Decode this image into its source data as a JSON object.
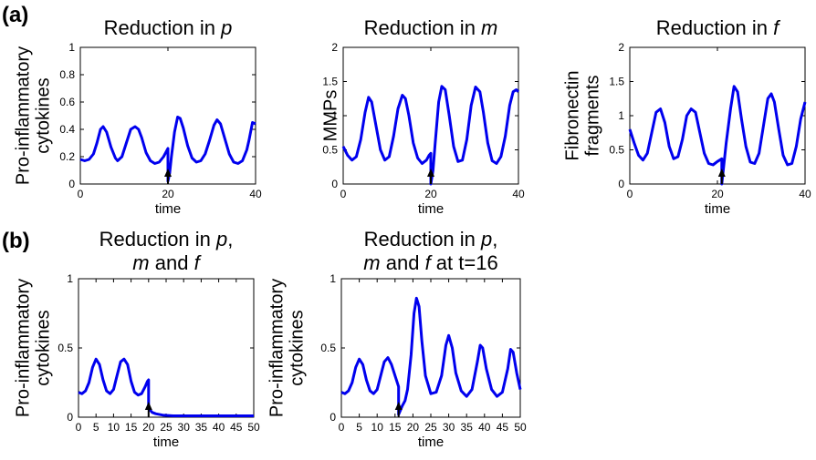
{
  "panel_labels": {
    "a": "(a)",
    "b": "(b)"
  },
  "chart_data": [
    {
      "id": "a1",
      "type": "line",
      "title": "Reduction in ",
      "title_italic": "p",
      "title_rest": "",
      "title2": "",
      "ylabel": [
        "Pro-inflammatory",
        "cytokines"
      ],
      "xlabel": "time",
      "xlim": [
        0,
        40
      ],
      "ylim": [
        0,
        1
      ],
      "xticks": [
        0,
        20,
        40
      ],
      "yticks": [
        0,
        0.2,
        0.4,
        0.6,
        0.8,
        1
      ],
      "ytick_labels": [
        "0",
        "0.2",
        "0.4",
        "0.6",
        "0.8",
        "1"
      ],
      "arrow_at": 20,
      "series": [
        {
          "color": "#0000ee",
          "x": [
            0,
            1,
            2,
            3,
            3.8,
            4.6,
            5.2,
            6,
            7,
            8,
            8.5,
            9.5,
            10.5,
            11.5,
            12.5,
            13.3,
            14,
            15,
            16,
            17,
            18,
            19,
            19.5,
            20,
            20,
            20.4,
            20.8,
            21.5,
            22.2,
            22.8,
            23.5,
            24.5,
            25.5,
            26.5,
            27.5,
            28.5,
            29.5,
            30.5,
            31.2,
            32,
            33,
            34,
            35,
            36,
            37,
            38,
            38.5,
            39.3,
            40
          ],
          "y": [
            0.18,
            0.17,
            0.18,
            0.22,
            0.3,
            0.4,
            0.42,
            0.38,
            0.27,
            0.19,
            0.17,
            0.2,
            0.3,
            0.4,
            0.42,
            0.4,
            0.34,
            0.23,
            0.17,
            0.15,
            0.16,
            0.2,
            0.23,
            0.26,
            0.02,
            0.08,
            0.2,
            0.38,
            0.49,
            0.48,
            0.41,
            0.28,
            0.19,
            0.16,
            0.17,
            0.22,
            0.32,
            0.43,
            0.47,
            0.44,
            0.33,
            0.22,
            0.16,
            0.15,
            0.17,
            0.25,
            0.32,
            0.45,
            0.44
          ]
        }
      ]
    },
    {
      "id": "a2",
      "type": "line",
      "title": "Reduction in ",
      "title_italic": "m",
      "title_rest": "",
      "title2": "",
      "ylabel": [
        "MMPs"
      ],
      "xlabel": "time",
      "xlim": [
        0,
        40
      ],
      "ylim": [
        0,
        2
      ],
      "xticks": [
        0,
        20,
        40
      ],
      "yticks": [
        0,
        0.5,
        1,
        1.5,
        2
      ],
      "ytick_labels": [
        "0",
        "0.5",
        "1",
        "1.5",
        "2"
      ],
      "arrow_at": 20,
      "series": [
        {
          "color": "#0000ee",
          "x": [
            0,
            1,
            2,
            3,
            4,
            5,
            5.8,
            6.5,
            7.5,
            8.5,
            9.5,
            10.5,
            11.5,
            12.5,
            13.5,
            14.2,
            15,
            16,
            17,
            18,
            19,
            19.6,
            20,
            20,
            20.5,
            21,
            21.8,
            22.5,
            23.3,
            24.2,
            25.2,
            26.2,
            27.2,
            28.2,
            29.2,
            30.2,
            31.2,
            32,
            33,
            34,
            35,
            36,
            37,
            38,
            38.8,
            39.5,
            40
          ],
          "y": [
            0.55,
            0.42,
            0.35,
            0.4,
            0.65,
            1.05,
            1.27,
            1.2,
            0.85,
            0.5,
            0.35,
            0.4,
            0.7,
            1.1,
            1.3,
            1.25,
            1.0,
            0.6,
            0.38,
            0.3,
            0.35,
            0.42,
            0.45,
            0.0,
            0.2,
            0.6,
            1.2,
            1.43,
            1.38,
            1.0,
            0.55,
            0.33,
            0.35,
            0.65,
            1.15,
            1.42,
            1.35,
            1.05,
            0.6,
            0.34,
            0.3,
            0.4,
            0.7,
            1.15,
            1.35,
            1.38,
            1.35
          ]
        }
      ]
    },
    {
      "id": "a3",
      "type": "line",
      "title": "Reduction in ",
      "title_italic": "f",
      "title_rest": "",
      "title2": "",
      "ylabel": [
        "Fibronectin",
        "fragments"
      ],
      "xlabel": "time",
      "xlim": [
        0,
        40
      ],
      "ylim": [
        0,
        2
      ],
      "xticks": [
        0,
        20,
        40
      ],
      "yticks": [
        0,
        0.5,
        1,
        1.5,
        2
      ],
      "ytick_labels": [
        "0",
        "0.5",
        "1",
        "1.5",
        "2"
      ],
      "arrow_at": 21,
      "series": [
        {
          "color": "#0000ee",
          "x": [
            0,
            1,
            2,
            3,
            4,
            5,
            6,
            7,
            8,
            9,
            10,
            11,
            12,
            13,
            14,
            15,
            16,
            17,
            18,
            19,
            20,
            21,
            21,
            21.5,
            22,
            23,
            23.8,
            24.6,
            25.5,
            26.5,
            27.5,
            28.5,
            29.5,
            30.5,
            31.5,
            32.3,
            33,
            34,
            35,
            36,
            37,
            38,
            39,
            40
          ],
          "y": [
            0.8,
            0.6,
            0.42,
            0.35,
            0.45,
            0.75,
            1.05,
            1.1,
            0.9,
            0.55,
            0.37,
            0.4,
            0.65,
            1.0,
            1.1,
            1.05,
            0.75,
            0.45,
            0.3,
            0.28,
            0.33,
            0.37,
            0.0,
            0.3,
            0.6,
            1.1,
            1.43,
            1.35,
            0.95,
            0.55,
            0.32,
            0.3,
            0.45,
            0.85,
            1.25,
            1.32,
            1.2,
            0.8,
            0.42,
            0.28,
            0.3,
            0.55,
            0.95,
            1.2
          ]
        }
      ]
    },
    {
      "id": "b1",
      "type": "line",
      "title": "Reduction in ",
      "title_italic": "p",
      "title_rest": ",",
      "title2": "and ",
      "title2_italic_pre": "m",
      "title2_italic": "f",
      "title2_rest": "",
      "ylabel": [
        "Pro-inflammatory",
        "cytokines"
      ],
      "xlabel": "time",
      "xlim": [
        0,
        50
      ],
      "ylim": [
        0,
        1
      ],
      "xticks": [
        0,
        5,
        10,
        15,
        20,
        25,
        30,
        35,
        40,
        45,
        50
      ],
      "yticks": [
        0,
        0.5,
        1
      ],
      "ytick_labels": [
        "0",
        "0.5",
        "1"
      ],
      "arrow_at": 20,
      "series": [
        {
          "color": "#0000ee",
          "x": [
            0,
            1,
            2,
            3,
            4,
            5,
            6,
            7,
            8,
            9,
            10,
            11,
            12,
            13,
            14,
            15,
            16,
            17,
            18,
            19,
            19.7,
            20,
            20,
            20.5,
            21,
            22,
            24,
            27,
            30,
            35,
            40,
            45,
            50
          ],
          "y": [
            0.18,
            0.17,
            0.19,
            0.25,
            0.36,
            0.42,
            0.38,
            0.27,
            0.19,
            0.17,
            0.2,
            0.3,
            0.4,
            0.42,
            0.38,
            0.26,
            0.18,
            0.16,
            0.17,
            0.22,
            0.26,
            0.27,
            0.07,
            0.05,
            0.035,
            0.025,
            0.015,
            0.01,
            0.01,
            0.01,
            0.01,
            0.01,
            0.01
          ]
        }
      ]
    },
    {
      "id": "b2",
      "type": "line",
      "title": "Reduction in ",
      "title_italic": "p",
      "title_rest": ",",
      "title2": "and ",
      "title2_italic_pre": "m",
      "title2_italic": "f",
      "title2_rest": " at t=16",
      "ylabel": [
        "Pro-inflammatory",
        "cytokines"
      ],
      "xlabel": "time",
      "xlim": [
        0,
        50
      ],
      "ylim": [
        0,
        1
      ],
      "xticks": [
        0,
        5,
        10,
        15,
        20,
        25,
        30,
        35,
        40,
        45,
        50
      ],
      "yticks": [
        0,
        0.5,
        1
      ],
      "ytick_labels": [
        "0",
        "0.5",
        "1"
      ],
      "arrow_at": 16,
      "series": [
        {
          "color": "#0000ee",
          "x": [
            0,
            1,
            2,
            3,
            4,
            5,
            6,
            7,
            8,
            9,
            10,
            11,
            12,
            13,
            14,
            15,
            16,
            16,
            16.5,
            17,
            17.8,
            18.5,
            19.5,
            20.3,
            21,
            21.7,
            22.5,
            23.5,
            25,
            26.5,
            28,
            29.2,
            30,
            31,
            32,
            33.5,
            35,
            36.5,
            38,
            38.8,
            39.5,
            40.5,
            42,
            43.5,
            45,
            46.5,
            47.3,
            48,
            49,
            50
          ],
          "y": [
            0.18,
            0.17,
            0.19,
            0.25,
            0.36,
            0.42,
            0.38,
            0.27,
            0.19,
            0.17,
            0.2,
            0.3,
            0.4,
            0.43,
            0.38,
            0.3,
            0.22,
            0.02,
            0.05,
            0.08,
            0.12,
            0.2,
            0.45,
            0.75,
            0.86,
            0.8,
            0.55,
            0.3,
            0.17,
            0.18,
            0.3,
            0.52,
            0.59,
            0.5,
            0.32,
            0.19,
            0.15,
            0.2,
            0.4,
            0.52,
            0.5,
            0.35,
            0.2,
            0.15,
            0.18,
            0.35,
            0.49,
            0.47,
            0.32,
            0.2
          ]
        }
      ]
    }
  ]
}
